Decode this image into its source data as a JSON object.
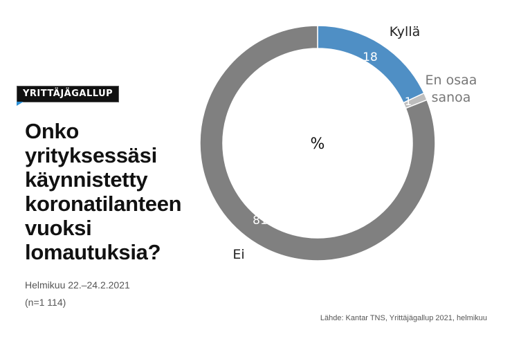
{
  "brand": "YRITTÄJÄGALLUP",
  "title": "Onko yrityksessäsi käynnistetty koronatilanteen vuoksi lomautuksia?",
  "title_lines": [
    "Onko",
    "yrityksessäsi",
    "käynnistetty",
    "koronatilanteen",
    "vuoksi",
    "lomautuksia?"
  ],
  "date": "Helmikuu 22.–24.2.2021",
  "sample": "(n=1 114)",
  "source": "Lähde: Kantar TNS, Yrittäjägallup 2021, helmikuu",
  "chart_data": {
    "type": "pie",
    "variant": "donut",
    "unit_label": "%",
    "categories": [
      "Kyllä",
      "En osaa sanoa",
      "Ei"
    ],
    "label_lines": [
      [
        "Kyllä"
      ],
      [
        "En osaa",
        "sanoa"
      ],
      [
        "Ei"
      ]
    ],
    "values": [
      18,
      1,
      81
    ],
    "colors": [
      "#4f8fc5",
      "#bdbdbd",
      "#808080"
    ],
    "label_colors": [
      "#222222",
      "#777777",
      "#222222"
    ]
  }
}
